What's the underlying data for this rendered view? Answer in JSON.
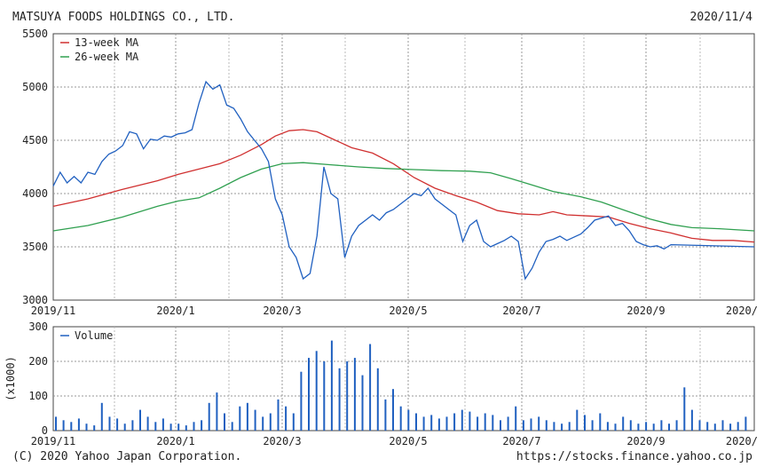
{
  "header": {
    "company": "MATSUYA FOODS HOLDINGS CO., LTD.",
    "date": "2020/11/4"
  },
  "footer": {
    "copyright": "(C) 2020 Yahoo Japan Corporation.",
    "source_url": "https://stocks.finance.yahoo.co.jp"
  },
  "chart_data": [
    {
      "type": "line",
      "name_hint": "price",
      "x_tick_labels": [
        "2019/11",
        "2020/1",
        "2020/3",
        "2020/5",
        "2020/7",
        "2020/9",
        "2020/"
      ],
      "y_tick_labels": [
        "3000",
        "3500",
        "4000",
        "4500",
        "5000",
        "5500"
      ],
      "ylim": [
        3000,
        5500
      ],
      "grid": true,
      "legend": "top-left",
      "series": [
        {
          "name": "13-week MA",
          "color": "#d03030",
          "points": [
            [
              0,
              3880
            ],
            [
              5,
              3950
            ],
            [
              10,
              4040
            ],
            [
              15,
              4120
            ],
            [
              18,
              4180
            ],
            [
              21,
              4230
            ],
            [
              24,
              4280
            ],
            [
              27,
              4360
            ],
            [
              30,
              4460
            ],
            [
              32,
              4540
            ],
            [
              34,
              4590
            ],
            [
              36,
              4600
            ],
            [
              38,
              4580
            ],
            [
              40,
              4520
            ],
            [
              43,
              4430
            ],
            [
              46,
              4380
            ],
            [
              49,
              4280
            ],
            [
              52,
              4150
            ],
            [
              55,
              4050
            ],
            [
              58,
              3980
            ],
            [
              61,
              3920
            ],
            [
              64,
              3840
            ],
            [
              67,
              3810
            ],
            [
              70,
              3800
            ],
            [
              72,
              3830
            ],
            [
              74,
              3800
            ],
            [
              77,
              3790
            ],
            [
              80,
              3780
            ],
            [
              83,
              3720
            ],
            [
              86,
              3670
            ],
            [
              89,
              3630
            ],
            [
              92,
              3580
            ],
            [
              95,
              3560
            ],
            [
              98,
              3560
            ],
            [
              101,
              3545
            ]
          ]
        },
        {
          "name": "26-week MA",
          "color": "#30a050",
          "points": [
            [
              0,
              3650
            ],
            [
              5,
              3700
            ],
            [
              10,
              3780
            ],
            [
              15,
              3880
            ],
            [
              18,
              3930
            ],
            [
              21,
              3960
            ],
            [
              24,
              4050
            ],
            [
              27,
              4150
            ],
            [
              30,
              4230
            ],
            [
              33,
              4280
            ],
            [
              36,
              4290
            ],
            [
              40,
              4270
            ],
            [
              44,
              4250
            ],
            [
              48,
              4235
            ],
            [
              52,
              4225
            ],
            [
              56,
              4215
            ],
            [
              60,
              4210
            ],
            [
              63,
              4195
            ],
            [
              66,
              4140
            ],
            [
              69,
              4080
            ],
            [
              72,
              4020
            ],
            [
              76,
              3970
            ],
            [
              79,
              3920
            ],
            [
              82,
              3850
            ],
            [
              86,
              3760
            ],
            [
              89,
              3710
            ],
            [
              92,
              3680
            ],
            [
              96,
              3670
            ],
            [
              101,
              3650
            ]
          ]
        },
        {
          "name": "price",
          "color": "#2060c0",
          "points": [
            [
              0,
              4070
            ],
            [
              1,
              4200
            ],
            [
              2,
              4100
            ],
            [
              3,
              4160
            ],
            [
              4,
              4100
            ],
            [
              5,
              4200
            ],
            [
              6,
              4180
            ],
            [
              7,
              4300
            ],
            [
              8,
              4370
            ],
            [
              9,
              4400
            ],
            [
              10,
              4450
            ],
            [
              11,
              4580
            ],
            [
              12,
              4560
            ],
            [
              13,
              4420
            ],
            [
              14,
              4510
            ],
            [
              15,
              4500
            ],
            [
              16,
              4540
            ],
            [
              17,
              4530
            ],
            [
              18,
              4560
            ],
            [
              19,
              4570
            ],
            [
              20,
              4600
            ],
            [
              21,
              4850
            ],
            [
              22,
              5050
            ],
            [
              23,
              4980
            ],
            [
              24,
              5020
            ],
            [
              25,
              4830
            ],
            [
              26,
              4800
            ],
            [
              27,
              4700
            ],
            [
              28,
              4580
            ],
            [
              29,
              4500
            ],
            [
              30,
              4420
            ],
            [
              31,
              4300
            ],
            [
              32,
              3950
            ],
            [
              33,
              3800
            ],
            [
              34,
              3500
            ],
            [
              35,
              3400
            ],
            [
              36,
              3200
            ],
            [
              37,
              3250
            ],
            [
              38,
              3600
            ],
            [
              39,
              4250
            ],
            [
              40,
              4000
            ],
            [
              41,
              3950
            ],
            [
              42,
              3400
            ],
            [
              43,
              3600
            ],
            [
              44,
              3700
            ],
            [
              45,
              3750
            ],
            [
              46,
              3800
            ],
            [
              47,
              3750
            ],
            [
              48,
              3820
            ],
            [
              49,
              3850
            ],
            [
              50,
              3900
            ],
            [
              51,
              3950
            ],
            [
              52,
              4000
            ],
            [
              53,
              3980
            ],
            [
              54,
              4050
            ],
            [
              55,
              3950
            ],
            [
              56,
              3900
            ],
            [
              57,
              3850
            ],
            [
              58,
              3800
            ],
            [
              59,
              3550
            ],
            [
              60,
              3700
            ],
            [
              61,
              3750
            ],
            [
              62,
              3550
            ],
            [
              63,
              3500
            ],
            [
              64,
              3530
            ],
            [
              65,
              3560
            ],
            [
              66,
              3600
            ],
            [
              67,
              3550
            ],
            [
              68,
              3200
            ],
            [
              69,
              3300
            ],
            [
              70,
              3450
            ],
            [
              71,
              3550
            ],
            [
              72,
              3570
            ],
            [
              73,
              3600
            ],
            [
              74,
              3560
            ],
            [
              75,
              3590
            ],
            [
              76,
              3620
            ],
            [
              77,
              3680
            ],
            [
              78,
              3750
            ],
            [
              79,
              3770
            ],
            [
              80,
              3790
            ],
            [
              81,
              3700
            ],
            [
              82,
              3720
            ],
            [
              83,
              3650
            ],
            [
              84,
              3550
            ],
            [
              85,
              3520
            ],
            [
              86,
              3500
            ],
            [
              87,
              3510
            ],
            [
              88,
              3480
            ],
            [
              89,
              3520
            ],
            [
              101,
              3500
            ]
          ]
        }
      ]
    },
    {
      "type": "bar",
      "name_hint": "volume",
      "series_name": "Volume",
      "color": "#2060c0",
      "ylabel": "(x1000)",
      "ylim": [
        0,
        300
      ],
      "y_tick_labels": [
        "0",
        "100",
        "200",
        "300"
      ],
      "x_tick_labels": [
        "2019/11",
        "2020/1",
        "2020/3",
        "2020/5",
        "2020/7",
        "2020/9",
        "2020/"
      ],
      "grid": true,
      "legend": "top-left",
      "values": [
        40,
        30,
        25,
        35,
        20,
        15,
        80,
        40,
        35,
        20,
        30,
        60,
        40,
        25,
        35,
        20,
        20,
        15,
        25,
        30,
        80,
        110,
        50,
        25,
        70,
        80,
        60,
        40,
        50,
        90,
        70,
        50,
        170,
        210,
        230,
        200,
        260,
        180,
        200,
        210,
        160,
        250,
        180,
        90,
        120,
        70,
        60,
        50,
        40,
        45,
        35,
        40,
        50,
        60,
        55,
        40,
        50,
        45,
        30,
        40,
        70,
        30,
        35,
        40,
        30,
        25,
        20,
        25,
        60,
        45,
        30,
        50,
        25,
        20,
        40,
        30,
        20,
        25,
        20,
        30,
        20,
        30,
        125,
        60,
        30,
        25,
        20,
        30,
        20,
        25,
        40
      ]
    }
  ]
}
